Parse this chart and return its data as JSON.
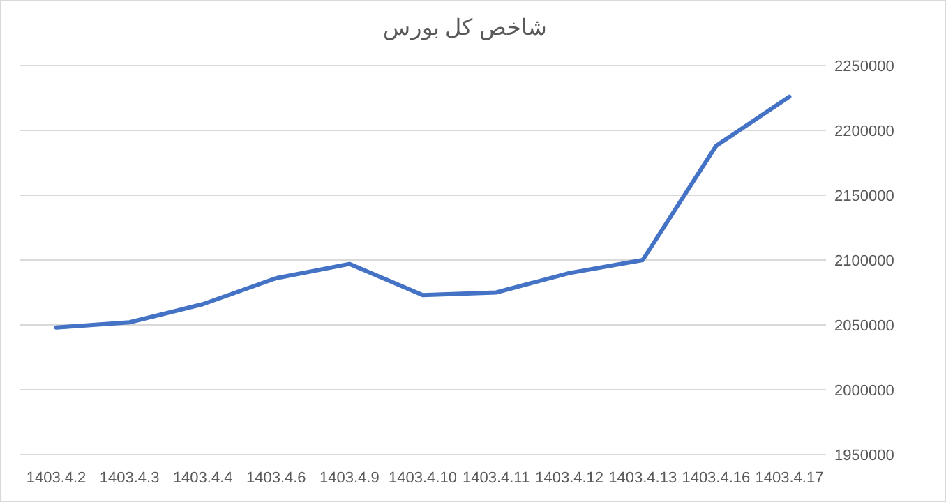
{
  "chart_data": {
    "type": "line",
    "title": "شاخص کل بورس",
    "categories": [
      "1403.4.2",
      "1403.4.3",
      "1403.4.4",
      "1403.4.6",
      "1403.4.9",
      "1403.4.10",
      "1403.4.11",
      "1403.4.12",
      "1403.4.13",
      "1403.4.16",
      "1403.4.17"
    ],
    "series": [
      {
        "color": "#4472c4",
        "values": [
          2048000,
          2052000,
          2066000,
          2086000,
          2097000,
          2073000,
          2075000,
          2090000,
          2100000,
          2188000,
          2226000
        ]
      }
    ],
    "ylim": [
      1950000,
      2250000
    ],
    "yticks": [
      1950000,
      2000000,
      2050000,
      2100000,
      2150000,
      2200000,
      2250000
    ],
    "grid": "y",
    "marker": "none",
    "line_style": "solid"
  }
}
